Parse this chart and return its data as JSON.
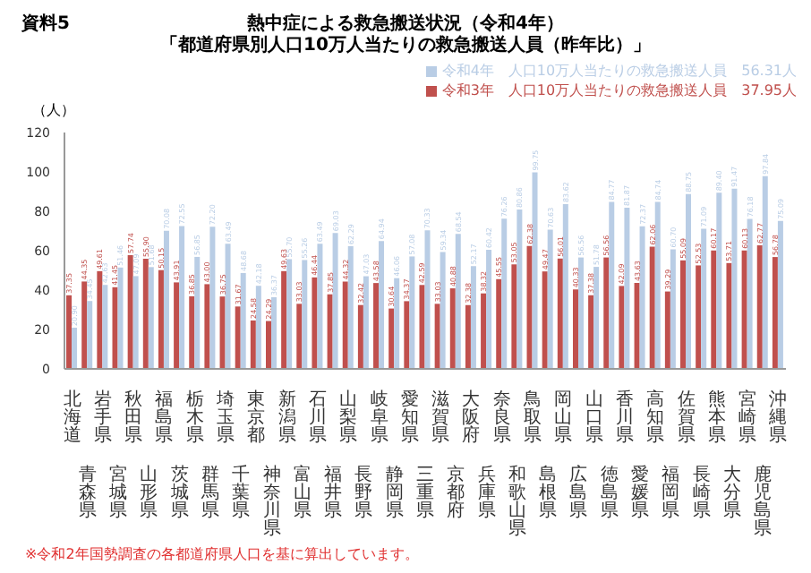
{
  "chart_data": {
    "type": "bar",
    "title": "熱中症による救急搬送状況（令和4年）",
    "subtitle": "「都道府県別人口10万人当たりの救急搬送人員（昨年比）」",
    "ylabel": "（人）",
    "annotations": [
      "資料5",
      "※令和2年国勢調査の各都道府県人口を基に算出しています。"
    ],
    "categories": [
      "北海道",
      "青森県",
      "岩手県",
      "宮城県",
      "秋田県",
      "山形県",
      "福島県",
      "茨城県",
      "栃木県",
      "群馬県",
      "埼玉県",
      "千葉県",
      "東京都",
      "神奈川県",
      "新潟県",
      "富山県",
      "石川県",
      "福井県",
      "山梨県",
      "長野県",
      "岐阜県",
      "静岡県",
      "愛知県",
      "三重県",
      "滋賀県",
      "京都府",
      "大阪府",
      "兵庫県",
      "奈良県",
      "和歌山県",
      "鳥取県",
      "島根県",
      "岡山県",
      "広島県",
      "山口県",
      "徳島県",
      "香川県",
      "愛媛県",
      "高知県",
      "福岡県",
      "佐賀県",
      "長崎県",
      "熊本県",
      "大分県",
      "宮崎県",
      "鹿児島県",
      "沖縄県"
    ],
    "series": [
      {
        "name": "令和3年　人口10万人当たりの救急搬送人員　37.95人",
        "color": "#c0504d",
        "values": [
          37.35,
          44.35,
          49.61,
          41.45,
          57.74,
          55.9,
          50.15,
          43.91,
          36.85,
          43.0,
          36.75,
          31.67,
          24.58,
          24.29,
          49.63,
          33.03,
          46.44,
          37.85,
          44.32,
          32.42,
          43.58,
          30.64,
          34.37,
          42.59,
          33.03,
          40.88,
          32.38,
          38.32,
          45.55,
          53.05,
          62.38,
          49.47,
          56.01,
          40.33,
          37.38,
          56.56,
          42.09,
          43.63,
          62.06,
          39.29,
          55.09,
          52.53,
          60.17,
          53.71,
          60.13,
          62.77,
          56.78
        ],
        "value_labels": [
          "37.35",
          "44.35",
          "49.61",
          "41.45",
          "57.74",
          "55.90",
          "50.15",
          "43.91",
          "36.85",
          "43.00",
          "36.75",
          "31.67",
          "24.58",
          "24.29",
          "49.63",
          "33.03",
          "46.44",
          "37.85",
          "44.32",
          "32.42",
          "43.58",
          "30.64",
          "34.37",
          "42.59",
          "33.03",
          "40.88",
          "32.38",
          "38.32",
          "45.55",
          "53.05",
          "62.38",
          "49.47",
          "56.01",
          "40.33",
          "37.38",
          "56.56",
          "42.09",
          "43.63",
          "62.06",
          "39.29",
          "55.09",
          "52.53",
          "60.17",
          "53.71",
          "60.13",
          "62.77",
          "56.78"
        ]
      },
      {
        "name": "令和4年　人口10万人当たりの救急搬送人員　56.31人",
        "color": "#b9cde5",
        "values": [
          20.9,
          34.45,
          42.63,
          51.46,
          47.09,
          51.68,
          70.08,
          72.55,
          56.85,
          72.2,
          63.49,
          48.68,
          42.18,
          36.37,
          55.7,
          55.26,
          63.49,
          69.03,
          62.29,
          47.03,
          64.94,
          46.06,
          57.08,
          70.33,
          59.34,
          68.54,
          52.17,
          60.42,
          76.26,
          80.86,
          99.75,
          70.63,
          83.62,
          56.56,
          51.78,
          84.77,
          81.87,
          72.37,
          84.74,
          60.7,
          88.75,
          71.09,
          89.4,
          91.47,
          76.18,
          97.84,
          75.09
        ],
        "value_labels": [
          "20.90",
          "34.45",
          "42.63",
          "51.46",
          "47.09",
          "51.68",
          "70.08",
          "72.55",
          "56.85",
          "72.20",
          "63.49",
          "48.68",
          "42.18",
          "36.37",
          "55.70",
          "55.26",
          "63.49",
          "69.03",
          "62.29",
          "47.03",
          "64.94",
          "46.06",
          "57.08",
          "70.33",
          "59.34",
          "68.54",
          "52.17",
          "60.42",
          "76.26",
          "80.86",
          "99.75",
          "70.63",
          "83.62",
          "56.56",
          "51.78",
          "84.77",
          "81.87",
          "72.37",
          "84.74",
          "60.70",
          "88.75",
          "71.09",
          "89.40",
          "91.47",
          "76.18",
          "97.84",
          "75.09"
        ]
      }
    ],
    "ylim": [
      0,
      120
    ],
    "yticks": [
      0,
      20,
      40,
      60,
      80,
      100,
      120
    ],
    "legend": "top right"
  }
}
